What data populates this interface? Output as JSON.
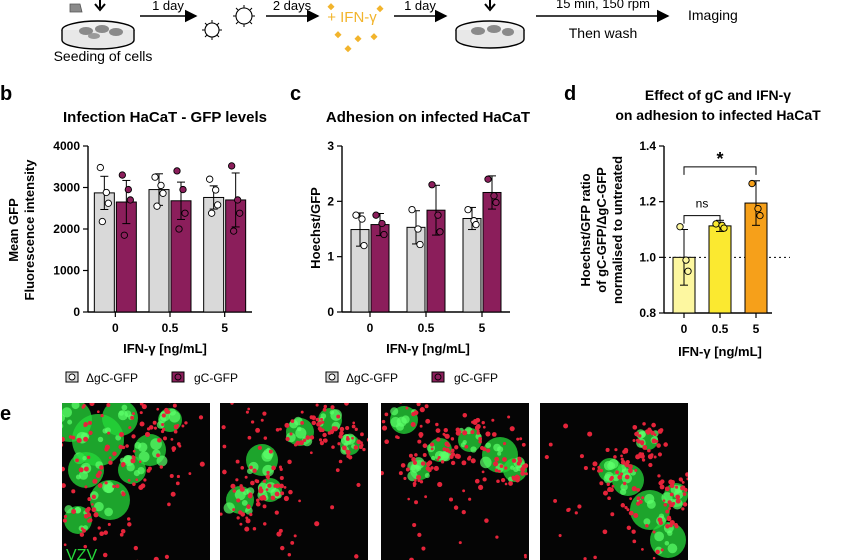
{
  "workflow": {
    "seeding_label": "Seeding of cells",
    "steps": [
      {
        "label": "1 day",
        "sublabel": ""
      },
      {
        "label": "2 days",
        "sublabel": ""
      },
      {
        "label": "1 day",
        "sublabel": ""
      },
      {
        "label": "15 min, 150 rpm",
        "sublabel": "Then wash"
      }
    ],
    "treatment_label": "+ IFN-γ",
    "final_label": "Imaging"
  },
  "chart_data": [
    {
      "panel": "b",
      "type": "bar",
      "title": "Infection HaCaT - GFP levels",
      "xlabel": "IFN-γ [ng/mL]",
      "ylabel": [
        "Mean GFP",
        "Fluorescence intensity"
      ],
      "ylim": [
        0,
        4000
      ],
      "yticks": [
        "0",
        "1000",
        "2000",
        "3000",
        "4000"
      ],
      "categories": [
        "0",
        "0.5",
        "5"
      ],
      "series": [
        {
          "name": "ΔgC-GFP",
          "color": "#d9d9d9",
          "values": [
            2870,
            2950,
            2760
          ],
          "errors": [
            400,
            380,
            280
          ],
          "points": [
            [
              3480,
              2880,
              2620,
              2180
            ],
            [
              3250,
              3050,
              2860,
              2550
            ],
            [
              3200,
              2940,
              2580,
              2380
            ]
          ]
        },
        {
          "name": "gC-GFP",
          "color": "#8b1e5b",
          "values": [
            2650,
            2680,
            2700
          ],
          "errors": [
            520,
            450,
            650
          ],
          "points": [
            [
              3300,
              2950,
              2700,
              1850
            ],
            [
              3400,
              2950,
              2380,
              2000
            ],
            [
              3520,
              2700,
              2380,
              1950
            ]
          ]
        }
      ],
      "legend": "bottom"
    },
    {
      "panel": "c",
      "type": "bar",
      "title": "Adhesion on infected HaCaT",
      "xlabel": "IFN-γ [ng/mL]",
      "ylabel": [
        "Hoechst/GFP"
      ],
      "ylim": [
        0,
        3
      ],
      "yticks": [
        "0",
        "1",
        "2",
        "3"
      ],
      "categories": [
        "0",
        "0.5",
        "5"
      ],
      "series": [
        {
          "name": "ΔgC-GFP",
          "color": "#d9d9d9",
          "values": [
            1.49,
            1.53,
            1.69
          ],
          "errors": [
            0.3,
            0.3,
            0.2
          ],
          "points": [
            [
              1.75,
              1.68,
              1.2
            ],
            [
              1.85,
              1.5,
              1.22
            ],
            [
              1.85,
              1.65,
              1.58
            ]
          ]
        },
        {
          "name": "gC-GFP",
          "color": "#8b1e5b",
          "values": [
            1.58,
            1.84,
            2.16
          ],
          "errors": [
            0.2,
            0.45,
            0.3
          ],
          "points": [
            [
              1.75,
              1.6,
              1.4
            ],
            [
              2.3,
              1.75,
              1.45
            ],
            [
              2.4,
              2.1,
              1.98
            ]
          ]
        }
      ],
      "legend": "bottom"
    },
    {
      "panel": "d",
      "type": "bar",
      "title": "Effect of gC and IFN-γ on adhesion to infected HaCaT",
      "title_lines": [
        "Effect of gC and IFN-γ",
        "on adhesion to infected HaCaT"
      ],
      "xlabel": "IFN-γ [ng/mL]",
      "ylabel": [
        "Hoechst/GFP ratio",
        "of gC-GFP/ΔgC-GFP",
        "normalised to untreated"
      ],
      "ylim": [
        0.8,
        1.4
      ],
      "yticks": [
        "0.8",
        "1.0",
        "1.2",
        "1.4"
      ],
      "categories": [
        "0",
        "0.5",
        "5"
      ],
      "values": [
        1.0,
        1.113,
        1.195
      ],
      "errors": [
        0.1,
        0.02,
        0.08
      ],
      "colors": [
        "#fdf7a0",
        "#fbe930",
        "#f6a01a"
      ],
      "points": [
        [
          1.11,
          0.99,
          0.95
        ],
        [
          1.12,
          1.115,
          1.105
        ],
        [
          1.265,
          1.175,
          1.15
        ]
      ],
      "reference_line": 1.0,
      "significance": [
        {
          "from": 0,
          "to": 1,
          "label": "ns"
        },
        {
          "from": 0,
          "to": 2,
          "label": "*"
        }
      ]
    }
  ],
  "panels": {
    "b": "b",
    "c": "c",
    "d": "d",
    "e": "e"
  },
  "micrographs": {
    "count": 4,
    "label": "VZV",
    "colors": {
      "green": "#25d93a",
      "red": "#e5243a",
      "background": "#050505"
    }
  }
}
